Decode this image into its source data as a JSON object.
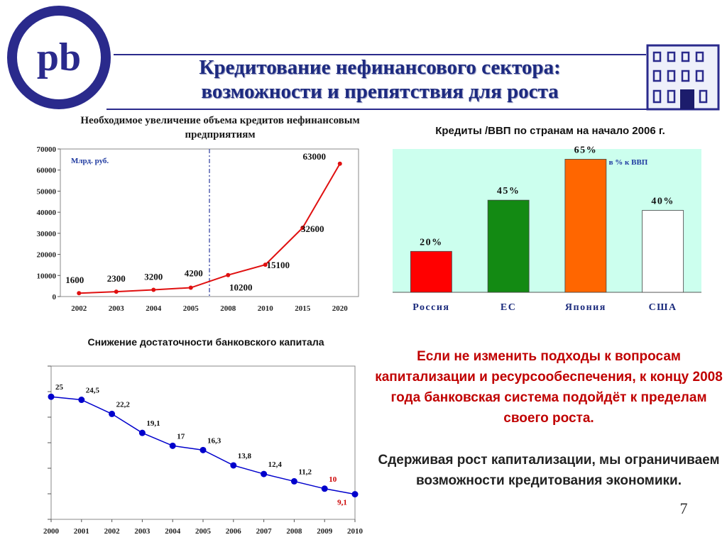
{
  "slide": {
    "title_line1": "Кредитование нефинансового сектора:",
    "title_line2": "возможности и препятствия для роста",
    "logo_letters": "pb",
    "page_number": "7",
    "accent_color": "#2a2a8c",
    "paragraph1": "Если не изменить подходы к вопросам капитализации и ресурсообеспечения, к концу 2008 года банковская система подойдёт к пределам своего роста.",
    "paragraph2": "Сдерживая рост капитализации, мы ограничиваем возможности кредитования экономики."
  },
  "chart_data": [
    {
      "type": "line",
      "title": "Необходимое увеличение объема кредитов нефинансовым предприятиям",
      "unit_label": "Млрд. руб.",
      "categories": [
        "2002",
        "2003",
        "2004",
        "2005",
        "2008",
        "2010",
        "2015",
        "2020"
      ],
      "values": [
        1600,
        2300,
        3200,
        4200,
        10200,
        15100,
        32600,
        63000
      ],
      "data_labels": [
        "1600",
        "2300",
        "3200",
        "4200",
        "10200",
        "15100",
        "32600",
        "63000"
      ],
      "yticks": [
        "0",
        "10000",
        "20000",
        "30000",
        "40000",
        "50000",
        "60000",
        "70000"
      ],
      "ylim": [
        0,
        70000
      ],
      "divider_after_category": "2005",
      "line_color": "#e01010",
      "grid": false
    },
    {
      "type": "bar",
      "title": "Кредиты /ВВП по странам на начало 2006  г.",
      "unit_label": "в %  к ВВП",
      "categories": [
        "Россия",
        "ЕС",
        "Япония",
        "США"
      ],
      "values": [
        20,
        45,
        65,
        40
      ],
      "data_labels": [
        "20%",
        "45%",
        "65%",
        "40%"
      ],
      "colors": [
        "#ff0000",
        "#138a13",
        "#ff6600",
        "#ffffff"
      ],
      "ylim": [
        0,
        70
      ],
      "background": "#ccffee",
      "grid": false
    },
    {
      "type": "line",
      "title": "Снижение достаточности банковского капитала",
      "categories": [
        "2000",
        "2001",
        "2002",
        "2003",
        "2004",
        "2005",
        "2006",
        "2007",
        "2008",
        "2009",
        "2010"
      ],
      "values": [
        25,
        24.5,
        22.2,
        19.1,
        17,
        16.3,
        13.8,
        12.4,
        11.2,
        10,
        9.1
      ],
      "data_labels": [
        "25",
        "24,5",
        "22,2",
        "19,1",
        "17",
        "16,3",
        "13,8",
        "12,4",
        "11,2",
        "10",
        "9,1"
      ],
      "highlight_label_color": "#cc0000",
      "line_color": "#0000cc",
      "ylim": [
        5,
        30
      ],
      "grid": false
    }
  ]
}
